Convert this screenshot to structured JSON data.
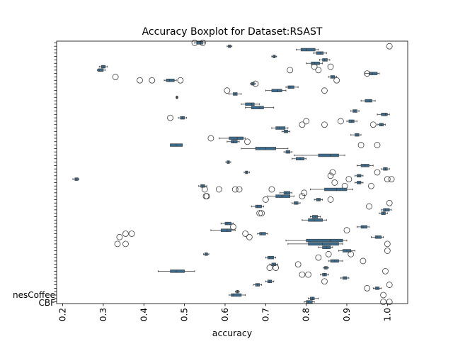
{
  "chart_data": {
    "type": "boxplot",
    "orientation": "horizontal",
    "title": "Accuracy Boxplot for Dataset:RSAST",
    "xlabel": "accuracy",
    "ylabel": "",
    "xlim": [
      0.185,
      1.05
    ],
    "xticks": [
      "0.2",
      "0.3",
      "0.4",
      "0.5",
      "0.6",
      "0.7",
      "0.8",
      "0.9",
      "1.0"
    ],
    "grid": false,
    "box_color": "#3a6a8c",
    "category_labels_visible_tail": [
      "nesCoffee",
      "CBF"
    ],
    "boxes": [
      {
        "q1": 0.53,
        "median": 0.54,
        "q3": 0.545,
        "wlo": 0.525,
        "whi": 0.55,
        "fliers": [
          0.525,
          0.545
        ]
      },
      {
        "q1": 0.608,
        "median": 0.61,
        "q3": 0.614,
        "wlo": 0.605,
        "whi": 0.617,
        "fliers": [
          1.005
        ]
      },
      {
        "q1": 0.787,
        "median": 0.8,
        "q3": 0.822,
        "wlo": 0.775,
        "whi": 0.83,
        "fliers": []
      },
      {
        "q1": 0.825,
        "median": 0.835,
        "q3": 0.842,
        "wlo": 0.818,
        "whi": 0.85,
        "fliers": []
      },
      {
        "q1": 0.718,
        "median": 0.721,
        "q3": 0.724,
        "wlo": 0.715,
        "whi": 0.727,
        "fliers": []
      },
      {
        "q1": 0.84,
        "median": 0.845,
        "q3": 0.852,
        "wlo": 0.833,
        "whi": 0.858,
        "fliers": []
      },
      {
        "q1": 0.812,
        "median": 0.82,
        "q3": 0.833,
        "wlo": 0.8,
        "whi": 0.84,
        "fliers": []
      },
      {
        "q1": 0.295,
        "median": 0.3,
        "q3": 0.305,
        "wlo": 0.29,
        "whi": 0.31,
        "fliers": [
          0.82,
          0.86
        ]
      },
      {
        "q1": 0.287,
        "median": 0.29,
        "q3": 0.3,
        "wlo": 0.285,
        "whi": 0.305,
        "fliers": [
          0.76,
          0.83
        ]
      },
      {
        "q1": 0.955,
        "median": 0.963,
        "q3": 0.975,
        "wlo": 0.945,
        "whi": 0.98,
        "fliers": [
          0.95
        ]
      },
      {
        "q1": 0.86,
        "median": 0.865,
        "q3": 0.87,
        "wlo": 0.855,
        "whi": 0.875,
        "fliers": [
          0.33
        ]
      },
      {
        "q1": 0.455,
        "median": 0.463,
        "q3": 0.475,
        "wlo": 0.45,
        "whi": 0.48,
        "fliers": [
          0.39,
          0.42,
          0.49,
          0.875
        ]
      },
      {
        "q1": 0.665,
        "median": 0.668,
        "q3": 0.672,
        "wlo": 0.662,
        "whi": 0.675,
        "fliers": [
          0.675
        ]
      },
      {
        "q1": 0.755,
        "median": 0.76,
        "q3": 0.77,
        "wlo": 0.75,
        "whi": 0.78,
        "fliers": []
      },
      {
        "q1": 0.715,
        "median": 0.73,
        "q3": 0.74,
        "wlo": 0.7,
        "whi": 0.75,
        "fliers": [
          0.605,
          0.845
        ]
      },
      {
        "q1": 0.62,
        "median": 0.625,
        "q3": 0.63,
        "wlo": 0.61,
        "whi": 0.64,
        "fliers": []
      },
      {
        "q1": 0.48,
        "median": 0.481,
        "q3": 0.483,
        "wlo": 0.479,
        "whi": 0.484,
        "fliers": []
      },
      {
        "q1": 0.945,
        "median": 0.955,
        "q3": 0.962,
        "wlo": 0.935,
        "whi": 0.97,
        "fliers": []
      },
      {
        "q1": 0.65,
        "median": 0.665,
        "q3": 0.672,
        "wlo": 0.64,
        "whi": 0.685,
        "fliers": []
      },
      {
        "q1": 0.665,
        "median": 0.685,
        "q3": 0.695,
        "wlo": 0.65,
        "whi": 0.72,
        "fliers": []
      },
      {
        "q1": 0.915,
        "median": 0.92,
        "q3": 0.925,
        "wlo": 0.91,
        "whi": 0.93,
        "fliers": []
      },
      {
        "q1": 0.985,
        "median": 0.995,
        "q3": 1.0,
        "wlo": 0.975,
        "whi": 1.005,
        "fliers": []
      },
      {
        "q1": 0.49,
        "median": 0.495,
        "q3": 0.5,
        "wlo": 0.485,
        "whi": 0.505,
        "fliers": [
          0.465
        ]
      },
      {
        "q1": 0.905,
        "median": 0.912,
        "q3": 0.918,
        "wlo": 0.9,
        "whi": 0.925,
        "fliers": [
          0.8,
          0.885
        ]
      },
      {
        "q1": 0.98,
        "median": 0.985,
        "q3": 0.99,
        "wlo": 0.975,
        "whi": 0.995,
        "fliers": [
          0.79,
          0.845,
          0.965
        ]
      },
      {
        "q1": 0.725,
        "median": 0.735,
        "q3": 0.748,
        "wlo": 0.715,
        "whi": 0.755,
        "fliers": []
      },
      {
        "q1": 0.745,
        "median": 0.75,
        "q3": 0.755,
        "wlo": 0.74,
        "whi": 0.76,
        "fliers": []
      },
      {
        "q1": 0.92,
        "median": 0.925,
        "q3": 0.93,
        "wlo": 0.91,
        "whi": 0.935,
        "fliers": []
      },
      {
        "q1": 0.61,
        "median": 0.63,
        "q3": 0.645,
        "wlo": 0.585,
        "whi": 0.65,
        "fliers": [
          0.565
        ]
      },
      {
        "q1": 0.615,
        "median": 0.62,
        "q3": 0.63,
        "wlo": 0.605,
        "whi": 0.635,
        "fliers": [
          0.655
        ]
      },
      {
        "q1": 0.465,
        "median": 0.48,
        "q3": 0.495,
        "wlo": 0.465,
        "whi": 0.495,
        "fliers": [
          0.935,
          0.975
        ]
      },
      {
        "q1": 0.675,
        "median": 0.7,
        "q3": 0.725,
        "wlo": 0.64,
        "whi": 0.755,
        "fliers": []
      },
      {
        "q1": 0.75,
        "median": 0.755,
        "q3": 0.76,
        "wlo": 0.745,
        "whi": 0.765,
        "fliers": []
      },
      {
        "q1": 0.83,
        "median": 0.86,
        "q3": 0.88,
        "wlo": 0.77,
        "whi": 0.895,
        "fliers": []
      },
      {
        "q1": 0.775,
        "median": 0.785,
        "q3": 0.795,
        "wlo": 0.765,
        "whi": 0.8,
        "fliers": []
      },
      {
        "q1": 0.605,
        "median": 0.608,
        "q3": 0.611,
        "wlo": 0.602,
        "whi": 0.614,
        "fliers": []
      },
      {
        "q1": 0.935,
        "median": 0.945,
        "q3": 0.955,
        "wlo": 0.925,
        "whi": 0.965,
        "fliers": []
      },
      {
        "q1": 0.99,
        "median": 0.995,
        "q3": 1.0,
        "wlo": 0.985,
        "whi": 1.005,
        "fliers": []
      },
      {
        "q1": 0.65,
        "median": 0.653,
        "q3": 0.656,
        "wlo": 0.647,
        "whi": 0.66,
        "fliers": [
          0.865,
          0.975
        ]
      },
      {
        "q1": 0.925,
        "median": 0.93,
        "q3": 0.935,
        "wlo": 0.92,
        "whi": 0.94,
        "fliers": [
          0.86
        ]
      },
      {
        "q1": 0.23,
        "median": 0.233,
        "q3": 0.238,
        "wlo": 0.225,
        "whi": 0.24,
        "fliers": [
          0.905,
          1.0,
          1.01
        ]
      },
      {
        "q1": 0.925,
        "median": 0.93,
        "q3": 0.935,
        "wlo": 0.92,
        "whi": 0.94,
        "fliers": [
          0.87
        ]
      },
      {
        "q1": 0.54,
        "median": 0.545,
        "q3": 0.55,
        "wlo": 0.535,
        "whi": 0.555,
        "fliers": [
          0.895,
          0.96
        ]
      },
      {
        "q1": 0.845,
        "median": 0.875,
        "q3": 0.9,
        "wlo": 0.81,
        "whi": 0.915,
        "fliers": [
          0.55,
          0.585,
          0.625,
          0.635,
          0.715
        ]
      },
      {
        "q1": 0.745,
        "median": 0.75,
        "q3": 0.76,
        "wlo": 0.735,
        "whi": 0.765,
        "fliers": [
          0.795
        ]
      },
      {
        "q1": 0.725,
        "median": 0.74,
        "q3": 0.76,
        "wlo": 0.705,
        "whi": 0.77,
        "fliers": [
          0.553,
          0.555,
          0.79
        ]
      },
      {
        "q1": 0.825,
        "median": 0.83,
        "q3": 0.835,
        "wlo": 0.82,
        "whi": 0.84,
        "fliers": [
          0.7,
          0.86
        ]
      },
      {
        "q1": 0.77,
        "median": 0.775,
        "q3": 0.78,
        "wlo": 0.765,
        "whi": 0.785,
        "fliers": [
          1.005
        ]
      },
      {
        "q1": 0.675,
        "median": 0.68,
        "q3": 0.69,
        "wlo": 0.665,
        "whi": 0.695,
        "fliers": [
          0.955
        ]
      },
      {
        "q1": 0.99,
        "median": 0.995,
        "q3": 1.005,
        "wlo": 0.985,
        "whi": 1.01,
        "fliers": []
      },
      {
        "q1": 0.985,
        "median": 0.99,
        "q3": 0.995,
        "wlo": 0.98,
        "whi": 1.0,
        "fliers": [
          0.685,
          0.69
        ]
      },
      {
        "q1": 0.815,
        "median": 0.822,
        "q3": 0.828,
        "wlo": 0.81,
        "whi": 0.835,
        "fliers": []
      },
      {
        "q1": 0.805,
        "median": 0.82,
        "q3": 0.84,
        "wlo": 0.79,
        "whi": 0.85,
        "fliers": []
      },
      {
        "q1": 0.6,
        "median": 0.605,
        "q3": 0.615,
        "wlo": 0.59,
        "whi": 0.62,
        "fliers": []
      },
      {
        "q1": 0.935,
        "median": 0.94,
        "q3": 0.95,
        "wlo": 0.925,
        "whi": 0.955,
        "fliers": [
          0.62
        ]
      },
      {
        "q1": 0.59,
        "median": 0.605,
        "q3": 0.615,
        "wlo": 0.565,
        "whi": 0.625,
        "fliers": [
          0.9
        ]
      },
      {
        "q1": 0.685,
        "median": 0.69,
        "q3": 0.7,
        "wlo": 0.68,
        "whi": 0.705,
        "fliers": [
          0.355,
          0.37,
          0.65
        ]
      },
      {
        "q1": 0.97,
        "median": 0.975,
        "q3": 0.985,
        "wlo": 0.96,
        "whi": 0.99,
        "fliers": [
          0.34,
          0.66
        ]
      },
      {
        "q1": 0.8,
        "median": 0.86,
        "q3": 0.89,
        "wlo": 0.75,
        "whi": 0.9,
        "fliers": []
      },
      {
        "q1": 0.805,
        "median": 0.84,
        "q3": 0.88,
        "wlo": 0.755,
        "whi": 0.89,
        "fliers": [
          0.335,
          0.355,
          1.0
        ]
      },
      {
        "q1": 0.84,
        "median": 0.85,
        "q3": 0.86,
        "wlo": 0.83,
        "whi": 0.865,
        "fliers": []
      },
      {
        "q1": 0.89,
        "median": 0.9,
        "q3": 0.91,
        "wlo": 0.88,
        "whi": 0.92,
        "fliers": [
          1.0
        ]
      },
      {
        "q1": 0.55,
        "median": 0.553,
        "q3": 0.557,
        "wlo": 0.547,
        "whi": 0.56,
        "fliers": [
          0.855,
          0.91
        ]
      },
      {
        "q1": 0.705,
        "median": 0.71,
        "q3": 0.72,
        "wlo": 0.7,
        "whi": 0.725,
        "fliers": [
          0.83
        ]
      },
      {
        "q1": 0.86,
        "median": 0.87,
        "q3": 0.88,
        "wlo": 0.855,
        "whi": 0.89,
        "fliers": [
          0.94
        ]
      },
      {
        "q1": 0.715,
        "median": 0.72,
        "q3": 0.725,
        "wlo": 0.71,
        "whi": 0.73,
        "fliers": [
          0.78
        ]
      },
      {
        "q1": 0.845,
        "median": 0.848,
        "q3": 0.852,
        "wlo": 0.842,
        "whi": 0.855,
        "fliers": [
          0.71,
          0.725
        ]
      },
      {
        "q1": 0.465,
        "median": 0.48,
        "q3": 0.5,
        "wlo": 0.435,
        "whi": 0.525,
        "fliers": [
          0.995
        ]
      },
      {
        "q1": 0.84,
        "median": 0.845,
        "q3": 0.85,
        "wlo": 0.835,
        "whi": 0.855,
        "fliers": [
          0.79,
          0.805
        ]
      },
      {
        "q1": 0.89,
        "median": 0.895,
        "q3": 0.9,
        "wlo": 0.885,
        "whi": 0.905,
        "fliers": []
      },
      {
        "q1": 0.705,
        "median": 0.71,
        "q3": 0.715,
        "wlo": 0.7,
        "whi": 0.72,
        "fliers": [
          0.845
        ]
      },
      {
        "q1": 0.675,
        "median": 0.68,
        "q3": 0.685,
        "wlo": 0.67,
        "whi": 0.69,
        "fliers": [
          1.005
        ]
      },
      {
        "q1": 0.97,
        "median": 0.975,
        "q3": 0.98,
        "wlo": 0.965,
        "whi": 0.985,
        "fliers": [
          0.95
        ]
      },
      {
        "q1": 0.628,
        "median": 0.63,
        "q3": 0.633,
        "wlo": 0.625,
        "whi": 0.635,
        "fliers": []
      },
      {
        "q1": 0.615,
        "median": 0.62,
        "q3": 0.64,
        "wlo": 0.61,
        "whi": 0.65,
        "fliers": [
          0.99
        ]
      },
      {
        "q1": 0.81,
        "median": 0.815,
        "q3": 0.82,
        "wlo": 0.805,
        "whi": 0.83,
        "fliers": []
      },
      {
        "q1": 0.8,
        "median": 0.805,
        "q3": 0.815,
        "wlo": 0.795,
        "whi": 0.82,
        "fliers": [
          0.99,
          1.005
        ]
      }
    ]
  }
}
